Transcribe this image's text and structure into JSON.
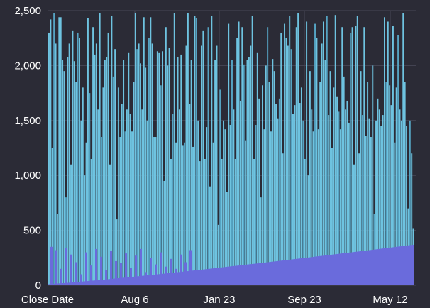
{
  "chart_data": {
    "type": "bar",
    "title": "",
    "xlabel": "",
    "ylabel": "",
    "x_tick_labels": [
      "Close Date",
      "Aug 6",
      "Jan 23",
      "Sep 23",
      "May 12"
    ],
    "y_tick_labels": [
      "0",
      "500",
      "1,000",
      "1,500",
      "2,000",
      "2,500"
    ],
    "ylim": [
      0,
      2500
    ],
    "grid": true,
    "legend": "none",
    "colors": {
      "background": "#2b2b36",
      "grid": "#474757",
      "bar": "#6ec3e0",
      "bar_dark": "#55a3c2",
      "area": "#6a6bdc",
      "text": "#ffffff"
    },
    "series": [
      {
        "values": [
          2300,
          2420,
          1250,
          2480,
          2200,
          650,
          2440,
          2440,
          2050,
          1950,
          800,
          2080,
          2200,
          1100,
          2320,
          2040,
          1850,
          2300,
          2250,
          1500,
          1800,
          1000,
          1300,
          2430,
          1750,
          1150,
          2350,
          2100,
          2200,
          1600,
          2480,
          1350,
          1800,
          2050,
          2080,
          2300,
          1100,
          2450,
          1900,
          2150,
          600,
          1800,
          1350,
          1650,
          2050,
          1400,
          1600,
          2120,
          1560,
          1400,
          1850,
          2480,
          2150,
          2200,
          2020,
          1600,
          2440,
          1980,
          1500,
          2250,
          2440,
          2200,
          1350,
          1350,
          2130,
          2120,
          1820,
          2130,
          950,
          2350,
          2000,
          2160,
          1150,
          1560,
          2480,
          1300,
          2080,
          1600,
          2100,
          1270,
          1300,
          2180,
          2480,
          1650,
          2050,
          1260,
          2450,
          2430,
          1500,
          1130,
          2180,
          2320,
          1150,
          1440,
          2350,
          900,
          2450,
          1300,
          2050,
          2180,
          550,
          1780,
          1150,
          1500,
          1420,
          850,
          2380,
          1460,
          2050,
          1600,
          1150,
          2250,
          2400,
          1680,
          2350,
          2010,
          1320,
          2050,
          2080,
          2180,
          2450,
          1150,
          1460,
          2120,
          1700,
          800,
          1820,
          1420,
          2000,
          2350,
          1850,
          1400,
          2060,
          1950,
          1650,
          1520,
          1700,
          2300,
          1200,
          2380,
          2250,
          2180,
          2450,
          2150,
          1560,
          1640,
          2350,
          2480,
          1660,
          1800,
          1500,
          1150,
          2400,
          1000,
          1950,
          1600,
          1400,
          2380,
          2250,
          1420,
          1850,
          2200,
          2400,
          2050,
          2450,
          1550,
          1950,
          1250,
          1800,
          2460,
          1720,
          1580,
          1420,
          2350,
          1900,
          1600,
          1680,
          1480,
          2300,
          2350,
          1100,
          2360,
          2450,
          1200,
          1950,
          1550,
          2350,
          1360,
          1850,
          1520,
          1350,
          2000,
          650,
          1500,
          1700,
          1600,
          1450,
          1550,
          2440,
          1850,
          2400,
          1820,
          1640,
          2360,
          1300,
          1800,
          2280,
          1600,
          1500,
          2480,
          1850,
          1450,
          700,
          1500,
          1200,
          520
        ]
      }
    ],
    "area_start": 10,
    "area_end": 370
  }
}
